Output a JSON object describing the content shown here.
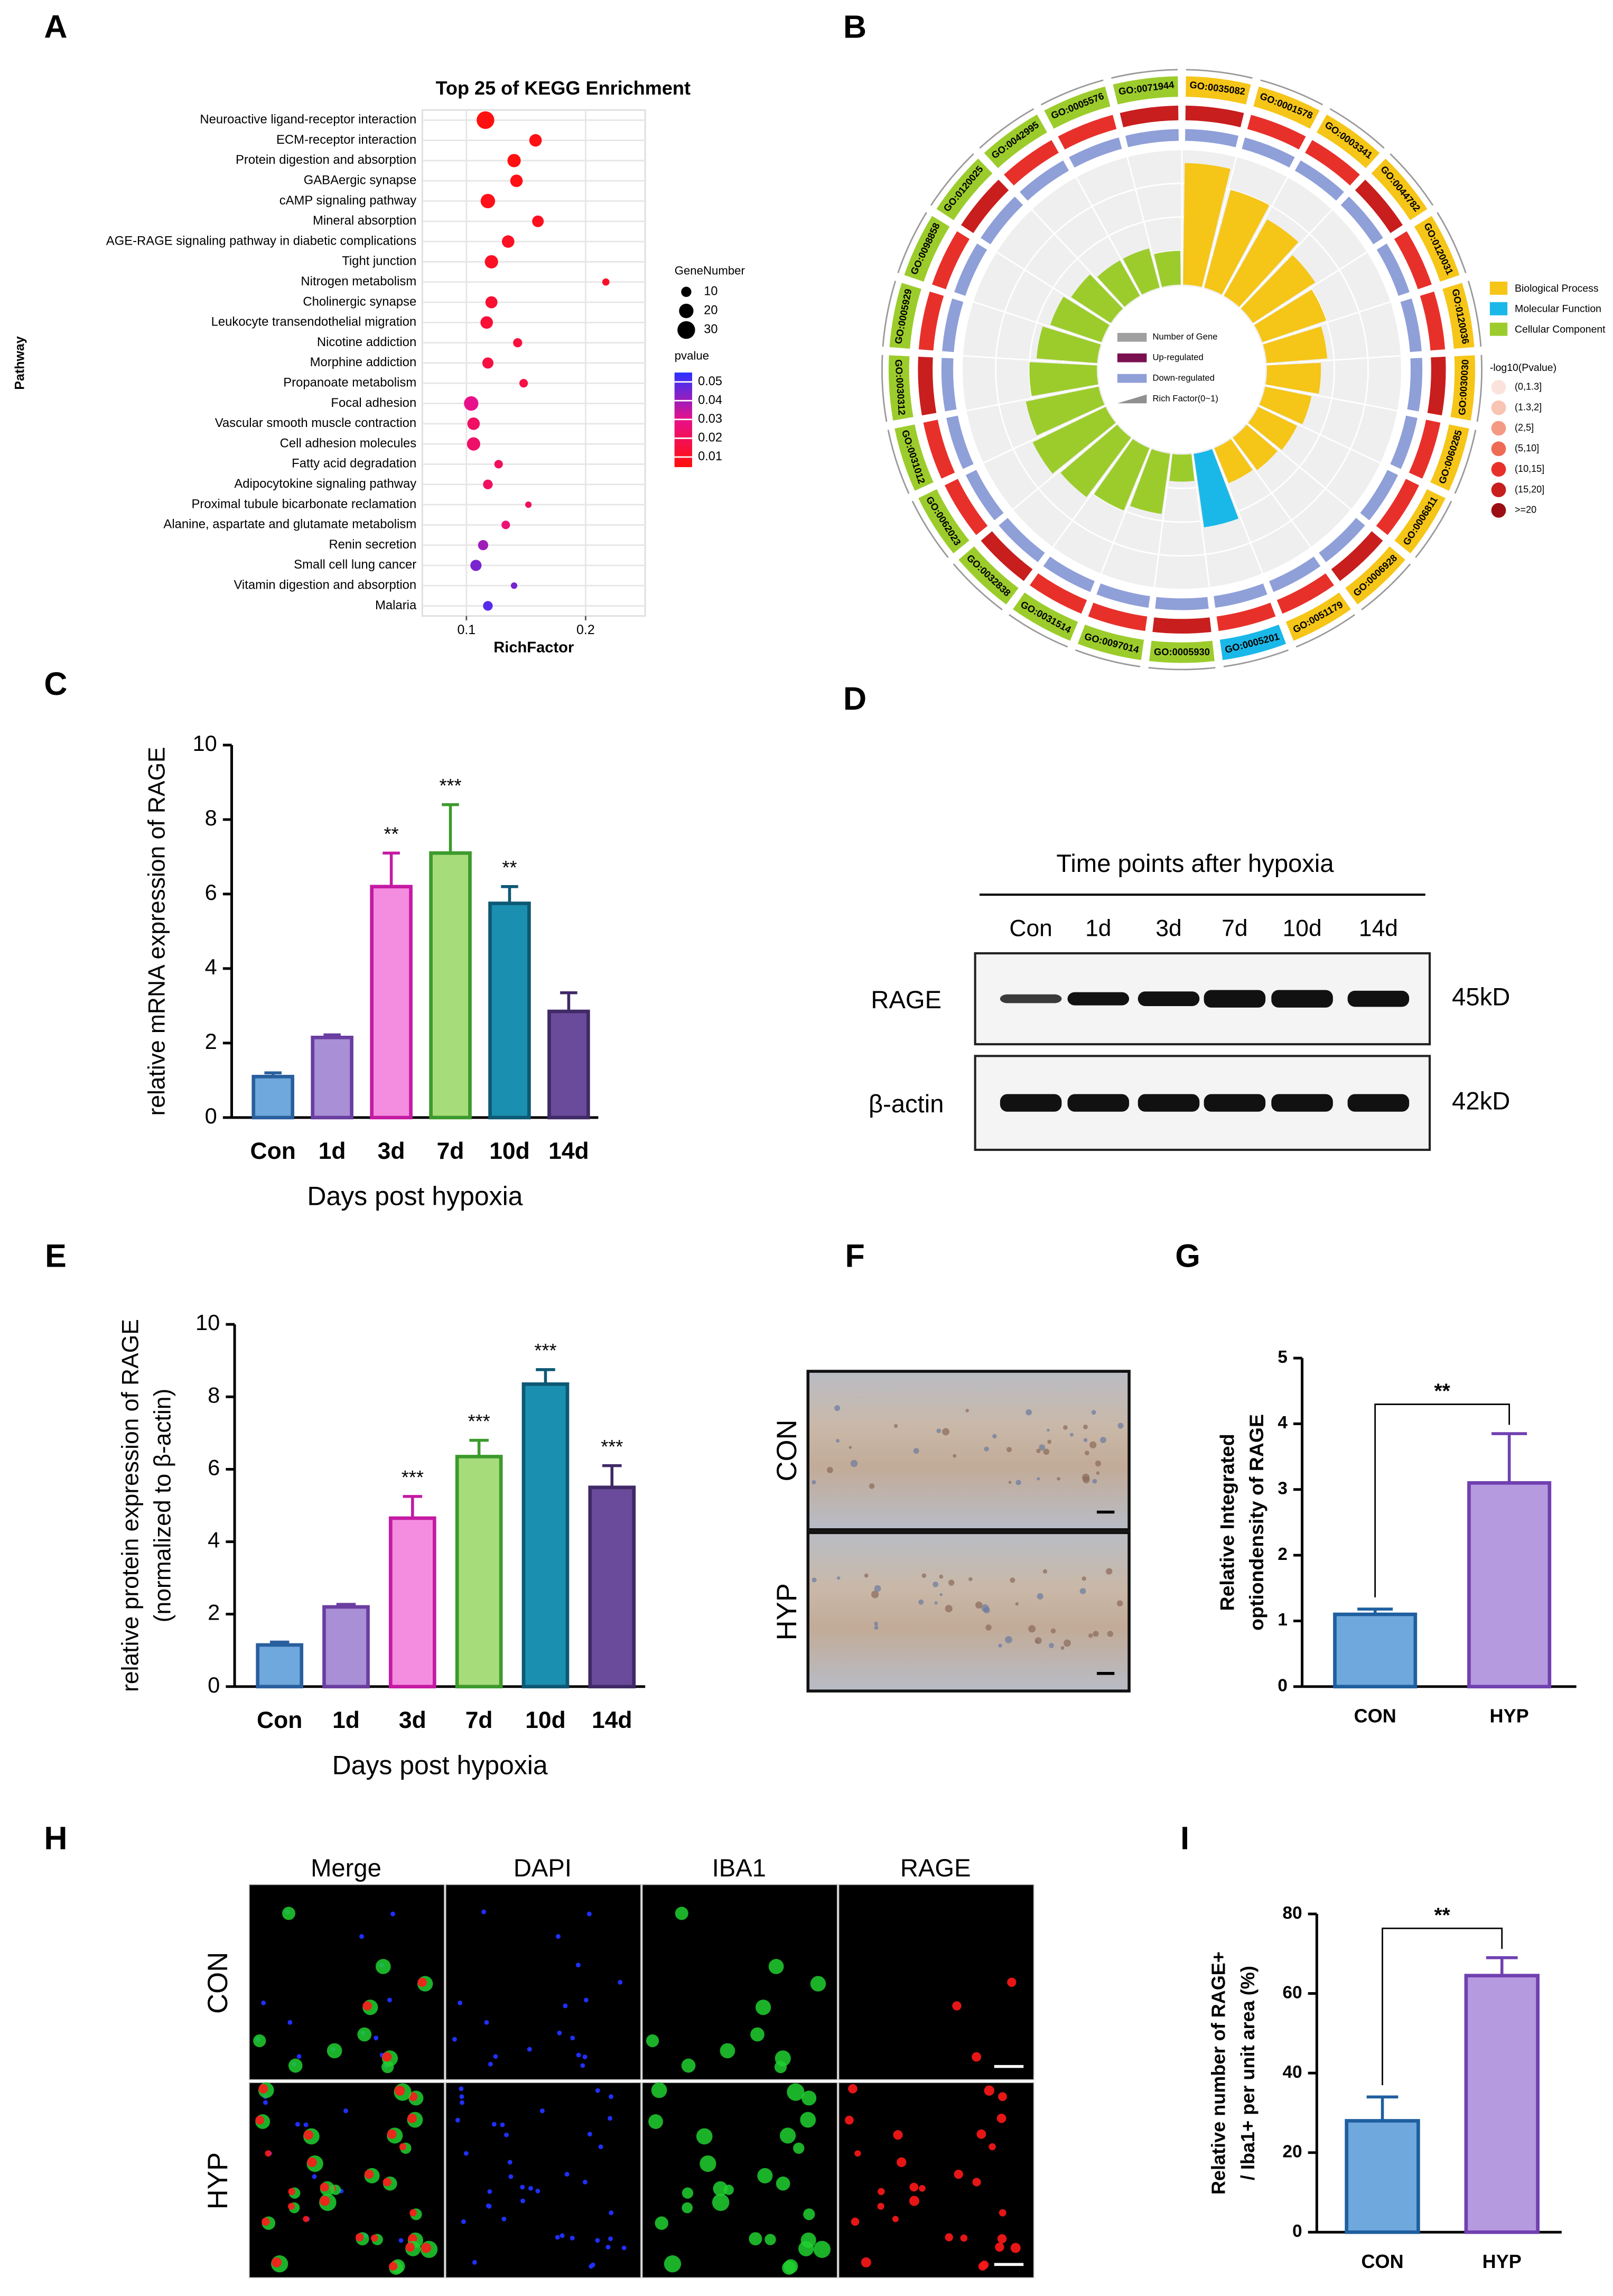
{
  "panel_labels": [
    "A",
    "B",
    "C",
    "D",
    "E",
    "F",
    "G",
    "H",
    "I"
  ],
  "chart_data": [
    {
      "type": "dotplot",
      "title": "Top 25 of KEGG Enrichment",
      "xlabel": "RichFactor",
      "ylabel": "Pathway",
      "categories": [
        "Neuroactive ligand-receptor interaction",
        "ECM-receptor interaction",
        "Protein digestion and absorption",
        "GABAergic synapse",
        "cAMP signaling pathway",
        "Mineral absorption",
        "AGE-RAGE signaling pathway in diabetic complications",
        "Tight junction",
        "Nitrogen metabolism",
        "Cholinergic synapse",
        "Leukocyte transendothelial migration",
        "Nicotine addiction",
        "Morphine addiction",
        "Propanoate metabolism",
        "Focal adhesion",
        "Vascular smooth muscle contraction",
        "Cell adhesion molecules",
        "Fatty acid degradation",
        "Adipocytokine signaling pathway",
        "Proximal tubule bicarbonate reclamation",
        "Alanine, aspartate and glutamate metabolism",
        "Renin secretion",
        "Small cell lung cancer",
        "Vitamin digestion and absorption",
        "Malaria"
      ],
      "x": [
        0.116,
        0.158,
        0.14,
        0.142,
        0.118,
        0.16,
        0.135,
        0.121,
        0.217,
        0.121,
        0.117,
        0.143,
        0.118,
        0.148,
        0.104,
        0.106,
        0.106,
        0.127,
        0.118,
        0.152,
        0.133,
        0.114,
        0.108,
        0.14,
        0.118
      ],
      "gene_number": [
        30,
        15,
        17,
        15,
        20,
        13,
        15,
        17,
        5,
        14,
        15,
        8,
        12,
        7,
        20,
        15,
        17,
        7,
        9,
        4,
        7,
        10,
        12,
        4,
        9
      ],
      "pvalue": [
        0.004,
        0.006,
        0.005,
        0.006,
        0.007,
        0.008,
        0.009,
        0.009,
        0.01,
        0.012,
        0.013,
        0.014,
        0.015,
        0.016,
        0.03,
        0.022,
        0.023,
        0.02,
        0.022,
        0.02,
        0.025,
        0.04,
        0.045,
        0.045,
        0.05
      ],
      "xlim": [
        0.063,
        0.25
      ],
      "xticks": [
        0.1,
        0.2
      ],
      "grid": true,
      "size_legend": {
        "title": "GeneNumber",
        "values": [
          10,
          20,
          30
        ]
      },
      "color_legend": {
        "title": "pvalue",
        "ticks": [
          0.05,
          0.04,
          0.03,
          0.02,
          0.01
        ],
        "lim": [
          0.005,
          0.055
        ],
        "colors": [
          "#ff1010",
          "#e8108a",
          "#3030ff"
        ]
      }
    },
    {
      "type": "circos",
      "categories": [
        "GO:0035082",
        "GO:0001578",
        "GO:0003341",
        "GO:0044782",
        "GO:0120031",
        "GO:0120036",
        "GO:0030030",
        "GO:0060285",
        "GO:0006811",
        "GO:0006928",
        "GO:0051179",
        "GO:0005201",
        "GO:0005930",
        "GO:0097014",
        "GO:0031514",
        "GO:0032838",
        "GO:0062023",
        "GO:0031012",
        "GO:0030312",
        "GO:0005929",
        "GO:0098858",
        "GO:0120025",
        "GO:0042995",
        "GO:0005576",
        "GO:0071944"
      ],
      "group": [
        "Biological Process",
        "Biological Process",
        "Biological Process",
        "Biological Process",
        "Biological Process",
        "Biological Process",
        "Biological Process",
        "Biological Process",
        "Biological Process",
        "Biological Process",
        "Biological Process",
        "Molecular Function",
        "Cellular Component",
        "Cellular Component",
        "Cellular Component",
        "Cellular Component",
        "Cellular Component",
        "Cellular Component",
        "Cellular Component",
        "Cellular Component",
        "Cellular Component",
        "Cellular Component",
        "Cellular Component",
        "Cellular Component",
        "Cellular Component"
      ],
      "rich_factor": [
        0.9,
        0.75,
        0.65,
        0.55,
        0.5,
        0.45,
        0.4,
        0.35,
        0.32,
        0.3,
        0.28,
        0.55,
        0.2,
        0.45,
        0.5,
        0.55,
        0.6,
        0.55,
        0.5,
        0.45,
        0.4,
        0.35,
        0.3,
        0.3,
        0.25
      ],
      "ylim": [
        0,
        1
      ],
      "groups": [
        {
          "name": "Biological Process",
          "color": "#f5c518"
        },
        {
          "name": "Molecular Function",
          "color": "#1ab8e8"
        },
        {
          "name": "Cellular Component",
          "color": "#9ccc2c"
        }
      ],
      "inner_legend": [
        {
          "name": "Number of Gene",
          "color": "#a0a0a0"
        },
        {
          "name": "Up-regulated",
          "color": "#7a1050"
        },
        {
          "name": "Down-regulated",
          "color": "#8f9fd8"
        },
        {
          "name": "Rich Factor(0~1)",
          "color": "#909090"
        }
      ],
      "pvalue_legend": {
        "title": "-log10(Pvalue)",
        "labels": [
          "(0,1.3]",
          "(1.3,2]",
          "(2,5]",
          "(5,10]",
          "(10,15]",
          "(15,20]",
          ">=20"
        ],
        "colors": [
          "#fbe3dc",
          "#f8c4b4",
          "#f49a84",
          "#ee6a55",
          "#e8302a",
          "#c81e1e",
          "#9b0f14"
        ]
      }
    },
    {
      "type": "bar",
      "ylabel": [
        "relative mRNA expression of RAGE"
      ],
      "xlabel": "Days post hypoxia",
      "categories": [
        "Con",
        "1d",
        "3d",
        "7d",
        "10d",
        "14d"
      ],
      "values": [
        1.1,
        2.15,
        6.2,
        7.1,
        5.75,
        2.85
      ],
      "errors": [
        0.1,
        0.07,
        0.9,
        1.3,
        0.45,
        0.5
      ],
      "colors": [
        "#6ea8dc",
        "#a98fd6",
        "#f48ce0",
        "#a7dc7a",
        "#1b8fb0",
        "#6a4a9a"
      ],
      "edge_colors": [
        "#2a5f9e",
        "#6a3ea1",
        "#c41aa3",
        "#3c9a2c",
        "#0d5875",
        "#3f2966"
      ],
      "significance": [
        null,
        null,
        "**",
        "***",
        "**",
        null
      ],
      "ylim": [
        0,
        10
      ],
      "yticks": [
        0,
        2,
        4,
        6,
        8,
        10
      ]
    },
    {
      "type": "bar",
      "ylabel": [
        "relative protein expression of RAGE",
        "(normalized to β-actin)"
      ],
      "xlabel": "Days post hypoxia",
      "categories": [
        "Con",
        "1d",
        "3d",
        "7d",
        "10d",
        "14d"
      ],
      "values": [
        1.15,
        2.2,
        4.65,
        6.35,
        8.35,
        5.5
      ],
      "errors": [
        0.08,
        0.07,
        0.6,
        0.45,
        0.4,
        0.6
      ],
      "colors": [
        "#6ea8dc",
        "#a98fd6",
        "#f48ce0",
        "#a7dc7a",
        "#1b8fb0",
        "#6a4a9a"
      ],
      "edge_colors": [
        "#2a5f9e",
        "#6a3ea1",
        "#c41aa3",
        "#3c9a2c",
        "#0d5875",
        "#3f2966"
      ],
      "significance": [
        null,
        null,
        "***",
        "***",
        "***",
        "***"
      ],
      "ylim": [
        0,
        10
      ],
      "yticks": [
        0,
        2,
        4,
        6,
        8,
        10
      ]
    },
    {
      "type": "bar",
      "ylabel": [
        "Relative Integrated",
        "optiondensity of RAGE"
      ],
      "categories": [
        "CON",
        "HYP"
      ],
      "values": [
        1.1,
        3.1
      ],
      "errors": [
        0.08,
        0.75
      ],
      "colors": [
        "#6ea8dc",
        "#b69ae0"
      ],
      "edge_colors": [
        "#1f5f9f",
        "#7040b0"
      ],
      "bracket_label": "**",
      "ylim": [
        0,
        5
      ],
      "yticks": [
        0,
        1,
        2,
        3,
        4,
        5
      ]
    },
    {
      "type": "bar",
      "ylabel": [
        "Relative number of RAGE+",
        "/ Iba1+ per unit area (%)"
      ],
      "categories": [
        "CON",
        "HYP"
      ],
      "values": [
        28,
        64.5
      ],
      "errors": [
        6,
        4.5
      ],
      "colors": [
        "#6ea8dc",
        "#b69ae0"
      ],
      "edge_colors": [
        "#1f5f9f",
        "#7040b0"
      ],
      "bracket_label": "**",
      "ylim": [
        0,
        80
      ],
      "yticks": [
        0,
        20,
        40,
        60,
        80
      ]
    }
  ],
  "blot": {
    "title": "Time points after hypoxia",
    "lanes": [
      "Con",
      "1d",
      "3d",
      "7d",
      "10d",
      "14d"
    ],
    "rows": [
      {
        "name": "RAGE",
        "size": "45kD"
      },
      {
        "name": "β-actin",
        "size": "42kD"
      }
    ]
  },
  "ihc": {
    "rows": [
      "CON",
      "HYP"
    ]
  },
  "fluorescence": {
    "columns": [
      "Merge",
      "DAPI",
      "IBA1",
      "RAGE"
    ],
    "rows": [
      "CON",
      "HYP"
    ]
  }
}
